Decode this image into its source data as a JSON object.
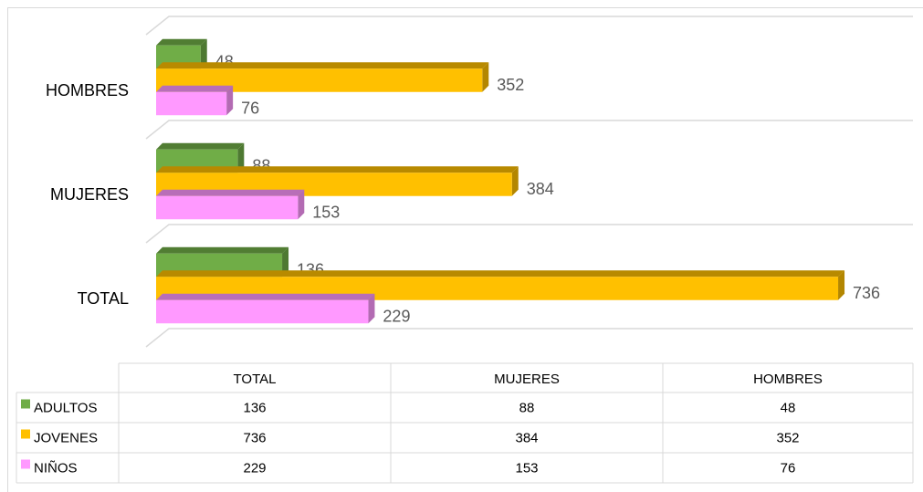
{
  "chart_data": {
    "type": "bar",
    "orientation": "horizontal",
    "categories": [
      "HOMBRES",
      "MUJERES",
      "TOTAL"
    ],
    "series": [
      {
        "name": "ADULTOS",
        "color": "#70ad47",
        "values": [
          48,
          88,
          136
        ]
      },
      {
        "name": "JOVENES",
        "color": "#ffc000",
        "values": [
          352,
          384,
          736
        ]
      },
      {
        "name": "NIÑOS",
        "color": "#ff99ff",
        "values": [
          76,
          153,
          229
        ]
      }
    ],
    "grid": true,
    "data_table": true
  }
}
